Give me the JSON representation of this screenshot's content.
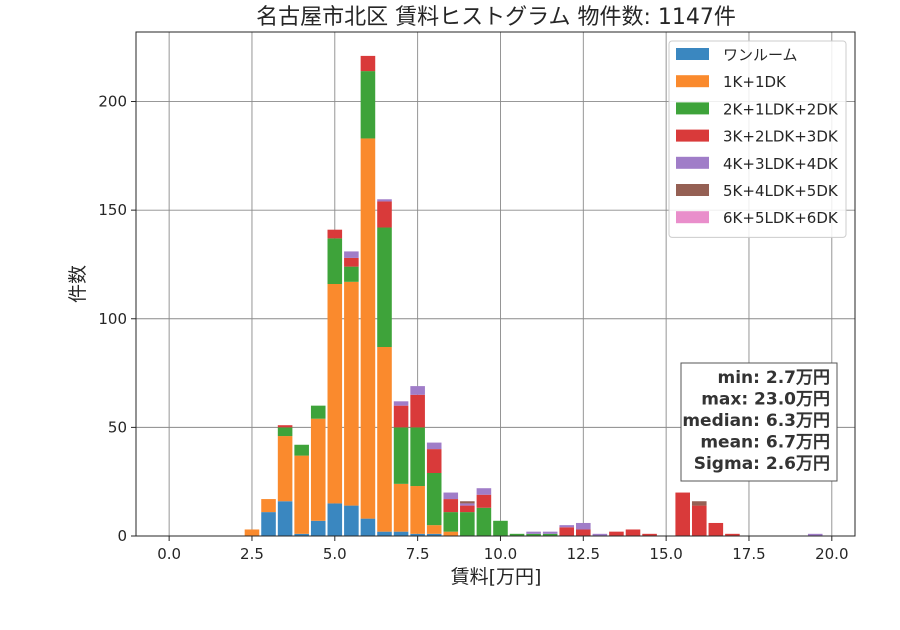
{
  "chart_data": {
    "type": "bar",
    "stacked": true,
    "title": "名古屋市北区 賃料ヒストグラム 物件数: 1147件",
    "xlabel": "賃料[万円]",
    "ylabel": "件数",
    "xlim": [
      -1.0,
      20.7
    ],
    "ylim": [
      0,
      232
    ],
    "xticks": [
      0.0,
      2.5,
      5.0,
      7.5,
      10.0,
      12.5,
      15.0,
      17.5,
      20.0
    ],
    "xtick_labels": [
      "0.0",
      "2.5",
      "5.0",
      "7.5",
      "10.0",
      "12.5",
      "15.0",
      "17.5",
      "20.0"
    ],
    "yticks": [
      0,
      50,
      100,
      150,
      200
    ],
    "ytick_labels": [
      "0",
      "50",
      "100",
      "150",
      "200"
    ],
    "grid": true,
    "legend_position": "top-right",
    "bin_width": 0.5,
    "bin_starts": [
      2.25,
      2.75,
      3.25,
      3.75,
      4.25,
      4.75,
      5.25,
      5.75,
      6.25,
      6.75,
      7.25,
      7.75,
      8.25,
      8.75,
      9.25,
      9.75,
      10.25,
      10.75,
      11.25,
      11.75,
      12.25,
      12.75,
      13.25,
      13.75,
      14.25,
      14.75,
      15.25,
      15.75,
      16.25,
      16.75,
      17.25,
      17.75,
      18.25,
      18.75,
      19.25
    ],
    "series": [
      {
        "name": "ワンルーム",
        "color": "#3a87c0",
        "values": [
          0,
          11,
          16,
          1,
          7,
          15,
          14,
          8,
          2,
          2,
          1,
          1,
          0,
          0,
          0,
          0,
          0,
          0,
          0,
          0,
          0,
          0,
          0,
          0,
          0,
          0,
          0,
          0,
          0,
          0,
          0,
          0,
          0,
          0,
          0
        ]
      },
      {
        "name": "1K+1DK",
        "color": "#fa8a2d",
        "values": [
          3,
          6,
          30,
          36,
          47,
          101,
          103,
          175,
          85,
          22,
          22,
          4,
          2,
          0,
          0,
          0,
          0,
          0,
          0,
          0,
          0,
          0,
          0,
          0,
          0,
          0,
          0,
          0,
          0,
          0,
          0,
          0,
          0,
          0,
          0
        ]
      },
      {
        "name": "2K+1LDK+2DK",
        "color": "#3ea33a",
        "values": [
          0,
          0,
          4,
          5,
          6,
          21,
          7,
          31,
          55,
          26,
          27,
          24,
          9,
          11,
          13,
          7,
          1,
          1,
          1,
          0,
          0,
          0,
          0,
          0,
          0,
          0,
          0,
          0,
          0,
          0,
          0,
          0,
          0,
          0,
          0
        ]
      },
      {
        "name": "3K+2LDK+3DK",
        "color": "#d93a3a",
        "values": [
          0,
          0,
          1,
          0,
          0,
          4,
          4,
          7,
          12,
          10,
          15,
          11,
          6,
          3,
          6,
          0,
          0,
          0,
          0,
          4,
          3,
          0,
          2,
          3,
          1,
          0,
          20,
          14,
          6,
          1,
          0,
          0,
          0,
          0,
          0
        ]
      },
      {
        "name": "4K+3LDK+4DK",
        "color": "#a07dc8",
        "values": [
          0,
          0,
          0,
          0,
          0,
          0,
          3,
          0,
          1,
          2,
          4,
          3,
          3,
          1,
          3,
          0,
          0,
          1,
          1,
          1,
          3,
          1,
          0,
          0,
          0,
          0,
          0,
          0,
          0,
          0,
          0,
          0,
          0,
          0,
          1
        ]
      },
      {
        "name": "5K+4LDK+5DK",
        "color": "#956054",
        "values": [
          0,
          0,
          0,
          0,
          0,
          0,
          0,
          0,
          0,
          0,
          0,
          0,
          0,
          1,
          0,
          0,
          0,
          0,
          0,
          0,
          0,
          0,
          0,
          0,
          0,
          0,
          0,
          2,
          0,
          0,
          0,
          0,
          0,
          0,
          0
        ]
      },
      {
        "name": "6K+5LDK+6DK",
        "color": "#e98ecb",
        "values": [
          0,
          0,
          0,
          0,
          0,
          0,
          0,
          0,
          0,
          0,
          0,
          0,
          0,
          0,
          0,
          0,
          0,
          0,
          0,
          0,
          0,
          0,
          0,
          0,
          0,
          0,
          0,
          0,
          0,
          0,
          0,
          0,
          0,
          0,
          0
        ]
      }
    ],
    "stats_box": [
      "min: 2.7万円",
      "max: 23.0万円",
      "median: 6.3万円",
      "mean: 6.7万円",
      "Sigma: 2.6万円"
    ]
  }
}
